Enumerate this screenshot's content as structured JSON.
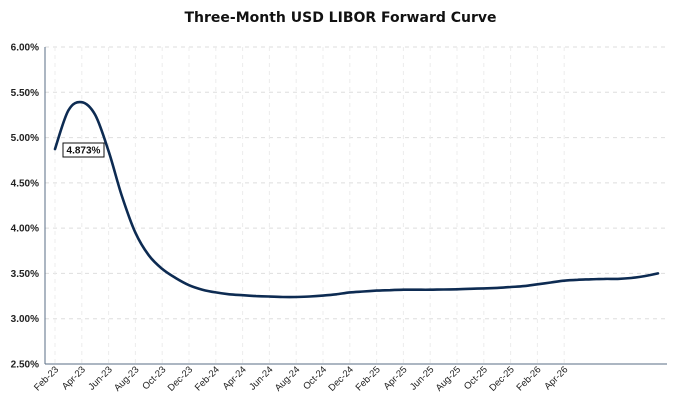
{
  "chart_data": {
    "type": "line",
    "title": "Three-Month USD LIBOR Forward Curve",
    "xlabel": "",
    "ylabel": "",
    "ylim": [
      0.025,
      0.06
    ],
    "y_ticks": [
      "2.50%",
      "3.00%",
      "3.50%",
      "4.00%",
      "4.50%",
      "5.00%",
      "5.50%",
      "6.00%"
    ],
    "x_ticks": [
      "Feb-23",
      "Apr-23",
      "Jun-23",
      "Aug-23",
      "Oct-23",
      "Dec-23",
      "Feb-24",
      "Apr-24",
      "Jun-24",
      "Aug-24",
      "Oct-24",
      "Dec-24",
      "Feb-25",
      "Apr-25",
      "Jun-25",
      "Aug-25",
      "Oct-25",
      "Dec-25",
      "Feb-26",
      "Apr-26"
    ],
    "grid": true,
    "line_color": "#0d2b52",
    "annotation": {
      "label": "4.873%",
      "value": 0.04873,
      "month": "Feb-23"
    },
    "series": [
      {
        "values": [
          0.04873,
          0.053,
          0.0539,
          0.0525,
          0.0485,
          0.0435,
          0.0395,
          0.037,
          0.0355,
          0.0345,
          0.0337,
          0.0332,
          0.0329,
          0.0327,
          0.0326,
          0.0325,
          0.03245,
          0.0324,
          0.0324,
          0.03245,
          0.03255,
          0.0327,
          0.0329,
          0.033,
          0.0331,
          0.03315,
          0.0332,
          0.0332,
          0.0332,
          0.03323,
          0.03325,
          0.0333,
          0.03335,
          0.0334,
          0.0335,
          0.0336,
          0.0338,
          0.034,
          0.0342,
          0.0343,
          0.03435,
          0.0344,
          0.0344,
          0.0345,
          0.0347,
          0.035
        ]
      }
    ]
  }
}
